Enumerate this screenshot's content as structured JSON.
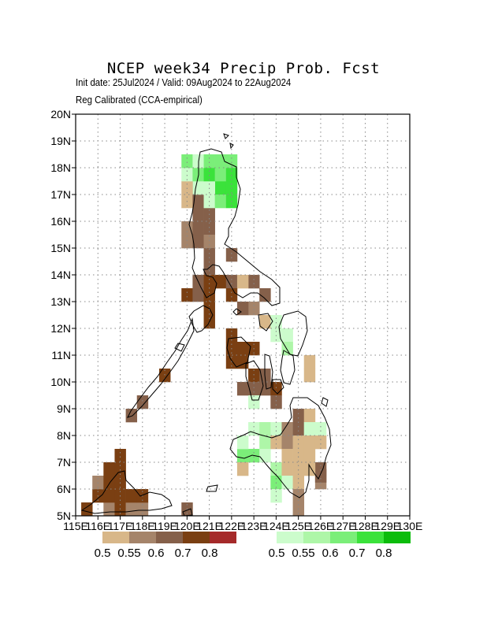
{
  "header": {
    "title": "NCEP week34 Precip Prob. Fcst",
    "subtitle_dates": "Init date: 25Jul2024 / Valid: 09Aug2024 to 22Aug2024",
    "subtitle_method": "Reg Calibrated (CCA-empirical)"
  },
  "map": {
    "lon_range": [
      115,
      130
    ],
    "lat_range": [
      5,
      20
    ],
    "grid": true,
    "lon_labels": [
      "115E",
      "116E",
      "117E",
      "118E",
      "119E",
      "120E",
      "121E",
      "122E",
      "123E",
      "124E",
      "125E",
      "126E",
      "127E",
      "128E",
      "129E",
      "130E"
    ],
    "lat_labels": [
      "5N",
      "6N",
      "7N",
      "8N",
      "9N",
      "10N",
      "11N",
      "12N",
      "13N",
      "14N",
      "15N",
      "16N",
      "17N",
      "18N",
      "19N",
      "20N"
    ],
    "category_colors": {
      "d50": "#d8b789",
      "d55": "#a5846a",
      "d60": "#85604a",
      "d70": "#7a3f12",
      "d80": "#a52a2a",
      "w50": "#ccfccc",
      "w55": "#aef6a8",
      "w60": "#7bee79",
      "w70": "#3be23b",
      "w80": "#0bbc0b"
    },
    "cells": [
      [
        "d70",
        115.5,
        5.25
      ],
      [
        "d55",
        116.5,
        5.25
      ],
      [
        "d70",
        117,
        5.25
      ],
      [
        "d55",
        117.5,
        5.25
      ],
      [
        "d55",
        118,
        5.25
      ],
      [
        "d70",
        116,
        5.75
      ],
      [
        "d70",
        116.5,
        5.75
      ],
      [
        "d70",
        117,
        5.75
      ],
      [
        "d70",
        117.5,
        5.75
      ],
      [
        "d70",
        118,
        5.75
      ],
      [
        "d55",
        116,
        6.25
      ],
      [
        "d70",
        116.5,
        6.25
      ],
      [
        "d70",
        117,
        6.25
      ],
      [
        "d70",
        116.5,
        6.75
      ],
      [
        "d70",
        117,
        6.75
      ],
      [
        "d70",
        117,
        7.25
      ],
      [
        "d60",
        120,
        5.25
      ],
      [
        "d60",
        117.5,
        8.75
      ],
      [
        "d60",
        118,
        9.25
      ],
      [
        "d70",
        119,
        10.25
      ],
      [
        "d55",
        120,
        15.25
      ],
      [
        "d60",
        120.5,
        15.25
      ],
      [
        "d55",
        120,
        15.75
      ],
      [
        "d60",
        120.5,
        15.75
      ],
      [
        "d60",
        121,
        15.75
      ],
      [
        "d60",
        120.5,
        16.25
      ],
      [
        "d60",
        121,
        16.25
      ],
      [
        "d50",
        120,
        16.75
      ],
      [
        "d60",
        120.5,
        16.75
      ],
      [
        "w50",
        120.5,
        17.25
      ],
      [
        "w70",
        121.5,
        17.25
      ],
      [
        "w70",
        122,
        17.25
      ],
      [
        "w50",
        121,
        17.25
      ],
      [
        "d50",
        120,
        17.25
      ],
      [
        "w50",
        120,
        17.75
      ],
      [
        "w60",
        120.5,
        17.75
      ],
      [
        "w70",
        121,
        17.75
      ],
      [
        "w60",
        121.5,
        17.75
      ],
      [
        "w70",
        122,
        17.75
      ],
      [
        "w60",
        120,
        18.25
      ],
      [
        "w50",
        120.5,
        18.25
      ],
      [
        "w60",
        121,
        18.25
      ],
      [
        "w60",
        121.5,
        18.25
      ],
      [
        "w60",
        122,
        18.25
      ],
      [
        "w50",
        121,
        16.75
      ],
      [
        "w60",
        121.5,
        16.75
      ],
      [
        "w70",
        122,
        16.75
      ],
      [
        "d55",
        121,
        15.25
      ],
      [
        "d60",
        121,
        14.75
      ],
      [
        "d60",
        121,
        14.25
      ],
      [
        "d60",
        122,
        14.75
      ],
      [
        "d60",
        120.5,
        13.75
      ],
      [
        "d70",
        121,
        13.75
      ],
      [
        "d70",
        121.5,
        13.75
      ],
      [
        "d60",
        122,
        13.75
      ],
      [
        "d60",
        123,
        13.75
      ],
      [
        "d50",
        122.5,
        13.75
      ],
      [
        "d70",
        120,
        13.25
      ],
      [
        "d60",
        120.5,
        13.25
      ],
      [
        "d70",
        121,
        13.25
      ],
      [
        "d70",
        122,
        13.25
      ],
      [
        "d60",
        123.5,
        13.25
      ],
      [
        "d55",
        123,
        12.75
      ],
      [
        "d70",
        121,
        12.75
      ],
      [
        "d70",
        121,
        12.25
      ],
      [
        "d60",
        122.5,
        12.75
      ],
      [
        "d50",
        123.5,
        12.25
      ],
      [
        "w50",
        124,
        12.25
      ],
      [
        "w50",
        124.5,
        11.75
      ],
      [
        "w50",
        124,
        11.75
      ],
      [
        "d70",
        122,
        11.75
      ],
      [
        "d70",
        122,
        11.25
      ],
      [
        "d70",
        122.5,
        11.25
      ],
      [
        "d70",
        123,
        11.25
      ],
      [
        "d70",
        122,
        10.75
      ],
      [
        "d70",
        122.5,
        10.75
      ],
      [
        "w55",
        124.5,
        11.25
      ],
      [
        "d50",
        125.5,
        10.75
      ],
      [
        "d50",
        125.5,
        10.25
      ],
      [
        "d70",
        123,
        10.25
      ],
      [
        "d60",
        123.5,
        10.25
      ],
      [
        "d60",
        123.5,
        9.75
      ],
      [
        "d60",
        122.5,
        9.75
      ],
      [
        "d70",
        124,
        9.75
      ],
      [
        "d60",
        123,
        9.75
      ],
      [
        "w50",
        123,
        9.25
      ],
      [
        "d60",
        124,
        9.25
      ],
      [
        "d60",
        125,
        8.75
      ],
      [
        "d50",
        125.5,
        8.75
      ],
      [
        "w50",
        123,
        8.25
      ],
      [
        "w55",
        123.5,
        8.25
      ],
      [
        "w50",
        124,
        8.25
      ],
      [
        "d55",
        124.5,
        8.25
      ],
      [
        "d60",
        125,
        8.25
      ],
      [
        "d55",
        125.5,
        8.25
      ],
      [
        "w50",
        126,
        8.25
      ],
      [
        "w50",
        125.5,
        8.25
      ],
      [
        "w55",
        123.5,
        7.75
      ],
      [
        "w60",
        123,
        7.25
      ],
      [
        "w50",
        123.5,
        7.25
      ],
      [
        "w60",
        122.5,
        7.25
      ],
      [
        "w50",
        122.5,
        7.75
      ],
      [
        "d50",
        124,
        7.75
      ],
      [
        "d55",
        124.5,
        7.75
      ],
      [
        "d50",
        125,
        7.75
      ],
      [
        "d50",
        125.5,
        7.75
      ],
      [
        "d50",
        126,
        7.75
      ],
      [
        "d50",
        124.5,
        7.25
      ],
      [
        "d50",
        125,
        7.25
      ],
      [
        "d50",
        125.5,
        7.25
      ],
      [
        "d60",
        126,
        6.75
      ],
      [
        "d55",
        126,
        6.25
      ],
      [
        "d60",
        126,
        6.5
      ],
      [
        "d50",
        122.5,
        6.75
      ],
      [
        "w55",
        124,
        6.75
      ],
      [
        "d50",
        124.5,
        6.75
      ],
      [
        "d50",
        125,
        6.75
      ],
      [
        "d50",
        125.5,
        6.75
      ],
      [
        "w60",
        124,
        6.25
      ],
      [
        "w50",
        124.5,
        6.25
      ],
      [
        "d50",
        125,
        6.25
      ],
      [
        "w50",
        124,
        5.75
      ],
      [
        "d55",
        125,
        5.75
      ],
      [
        "d55",
        125,
        5.25
      ]
    ]
  },
  "legend": {
    "dry_labels": [
      "0.5",
      "0.55",
      "0.6",
      "0.7",
      "0.8"
    ],
    "wet_labels": [
      "0.5",
      "0.55",
      "0.6",
      "0.7",
      "0.8"
    ],
    "dry_keys": [
      "d50",
      "d55",
      "d60",
      "d70",
      "d80"
    ],
    "wet_keys": [
      "w50",
      "w55",
      "w60",
      "w70",
      "w80"
    ]
  }
}
